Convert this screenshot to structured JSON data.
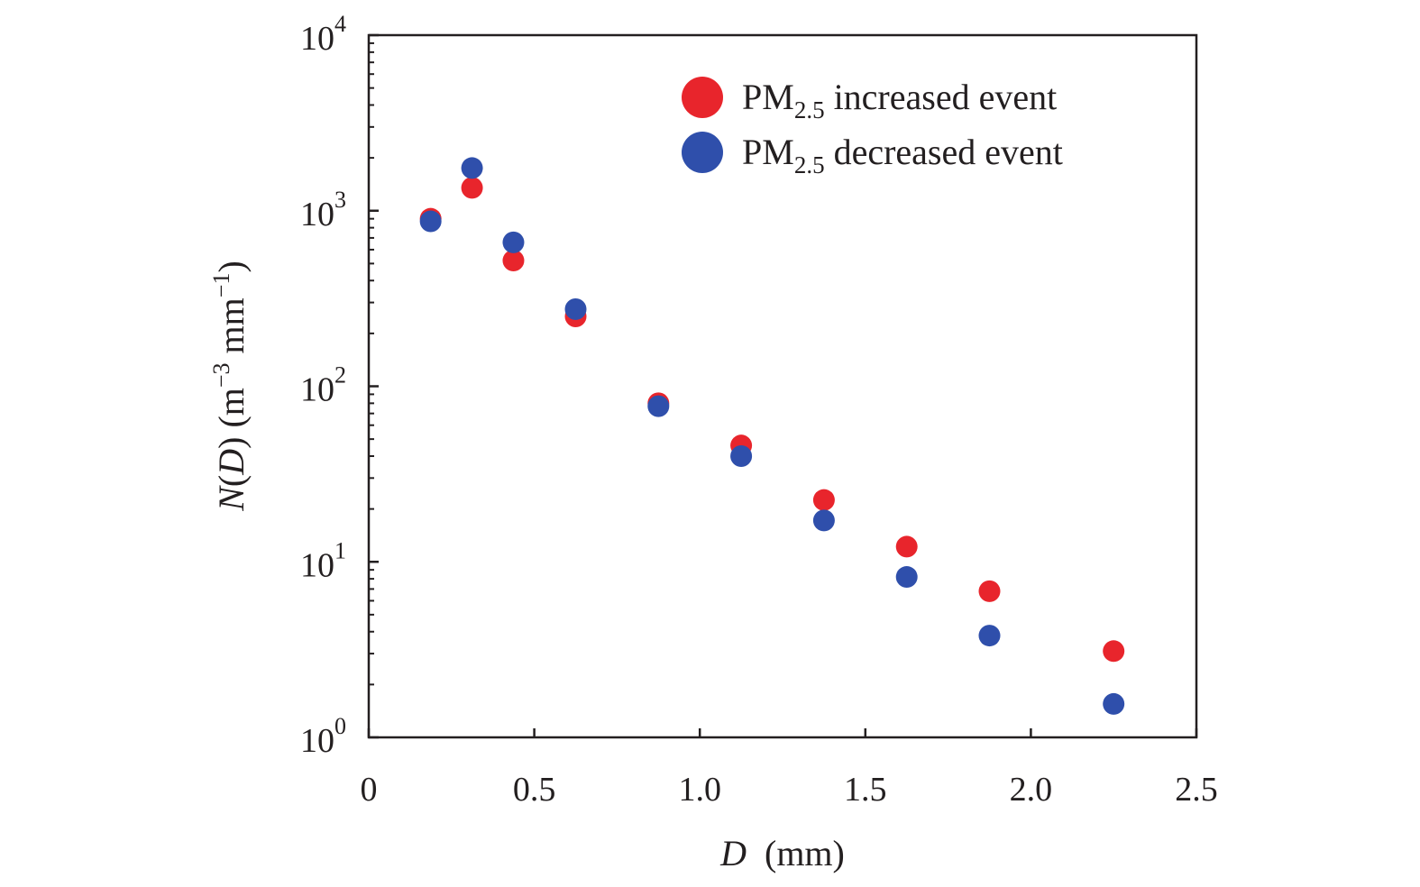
{
  "chart_data": {
    "type": "scatter",
    "title": "",
    "xlabel": {
      "var": "D",
      "unit": "(mm)"
    },
    "ylabel": {
      "var": "N",
      "arg": "D",
      "unit_m": "m",
      "unit_m_exp": "−3",
      "unit_mm": "mm",
      "unit_mm_exp": "−1"
    },
    "xlim": [
      0,
      2.5
    ],
    "ylim": [
      1,
      10000
    ],
    "yscale": "log",
    "grid": false,
    "legend_position": "top-right",
    "x_ticks": [
      {
        "value": 0,
        "label": "0"
      },
      {
        "value": 0.5,
        "label": "0.5"
      },
      {
        "value": 1.0,
        "label": "1.0"
      },
      {
        "value": 1.5,
        "label": "1.5"
      },
      {
        "value": 2.0,
        "label": "2.0"
      },
      {
        "value": 2.5,
        "label": "2.5"
      }
    ],
    "y_ticks": [
      {
        "value": 1,
        "base": "10",
        "exp": "0"
      },
      {
        "value": 10,
        "base": "10",
        "exp": "1"
      },
      {
        "value": 100,
        "base": "10",
        "exp": "2"
      },
      {
        "value": 1000,
        "base": "10",
        "exp": "3"
      },
      {
        "value": 10000,
        "base": "10",
        "exp": "4"
      }
    ],
    "series": [
      {
        "name_prefix": "PM",
        "name_sub": "2.5",
        "name_suffix": " increased event",
        "color": "#e8252c",
        "points": [
          {
            "x": 0.187,
            "y": 900
          },
          {
            "x": 0.312,
            "y": 1350
          },
          {
            "x": 0.437,
            "y": 520
          },
          {
            "x": 0.625,
            "y": 250
          },
          {
            "x": 0.875,
            "y": 80
          },
          {
            "x": 1.125,
            "y": 46
          },
          {
            "x": 1.375,
            "y": 22.5
          },
          {
            "x": 1.625,
            "y": 12.2
          },
          {
            "x": 1.875,
            "y": 6.8
          },
          {
            "x": 2.25,
            "y": 3.1
          }
        ]
      },
      {
        "name_prefix": "PM",
        "name_sub": "2.5",
        "name_suffix": " decreased event",
        "color": "#2f4fab",
        "points": [
          {
            "x": 0.187,
            "y": 870
          },
          {
            "x": 0.312,
            "y": 1750
          },
          {
            "x": 0.437,
            "y": 660
          },
          {
            "x": 0.625,
            "y": 275
          },
          {
            "x": 0.875,
            "y": 77
          },
          {
            "x": 1.125,
            "y": 40
          },
          {
            "x": 1.375,
            "y": 17.2
          },
          {
            "x": 1.625,
            "y": 8.2
          },
          {
            "x": 1.875,
            "y": 3.8
          },
          {
            "x": 2.25,
            "y": 1.55
          }
        ]
      }
    ]
  }
}
